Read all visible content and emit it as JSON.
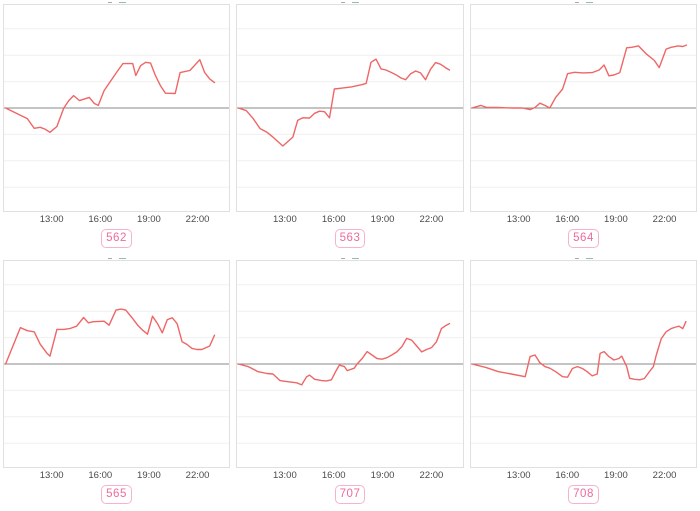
{
  "style": {
    "line_color": "#ee6666",
    "zero_line_color": "#8a8a8a",
    "grid_color": "#f0f0f0",
    "box_border_color": "#e0e0e0",
    "tick_text_color": "#4a4a4a",
    "badge_text_color": "#ee6a9a",
    "badge_border_color": "#f8b3cc",
    "background": "#ffffff"
  },
  "chart_data": [
    {
      "type": "line",
      "badge": "562",
      "x_ticks": [
        "13:00",
        "16:00",
        "19:00",
        "22:00"
      ],
      "x_tick_hours": [
        13,
        16,
        19,
        22
      ],
      "xlim": [
        10,
        24
      ],
      "ylim": [
        -3.9,
        3.9
      ],
      "zero_line": 0,
      "grid": "horizontal",
      "legend": "none",
      "points": [
        [
          10.1,
          0
        ],
        [
          11.45,
          -0.4
        ],
        [
          11.88,
          -0.77
        ],
        [
          12.25,
          -0.73
        ],
        [
          12.55,
          -0.8
        ],
        [
          12.86,
          -0.92
        ],
        [
          13.29,
          -0.7
        ],
        [
          13.72,
          0
        ],
        [
          14.03,
          0.28
        ],
        [
          14.33,
          0.47
        ],
        [
          14.7,
          0.28
        ],
        [
          15.31,
          0.4
        ],
        [
          15.62,
          0.17
        ],
        [
          15.87,
          0.1
        ],
        [
          16.23,
          0.66
        ],
        [
          16.66,
          1.04
        ],
        [
          17.09,
          1.42
        ],
        [
          17.4,
          1.68
        ],
        [
          18.01,
          1.68
        ],
        [
          18.2,
          1.23
        ],
        [
          18.5,
          1.6
        ],
        [
          18.81,
          1.73
        ],
        [
          19.12,
          1.7
        ],
        [
          19.42,
          1.23
        ],
        [
          19.73,
          0.85
        ],
        [
          20.04,
          0.56
        ],
        [
          20.65,
          0.55
        ],
        [
          20.96,
          1.34
        ],
        [
          21.57,
          1.42
        ],
        [
          22.18,
          1.83
        ],
        [
          22.49,
          1.34
        ],
        [
          22.8,
          1.1
        ],
        [
          23.1,
          0.96
        ]
      ]
    },
    {
      "type": "line",
      "badge": "563",
      "x_ticks": [
        "13:00",
        "16:00",
        "19:00",
        "22:00"
      ],
      "x_tick_hours": [
        13,
        16,
        19,
        22
      ],
      "xlim": [
        10,
        24
      ],
      "ylim": [
        -3.9,
        3.9
      ],
      "zero_line": 0,
      "grid": "horizontal",
      "legend": "none",
      "points": [
        [
          10.08,
          0
        ],
        [
          10.57,
          -0.1
        ],
        [
          11.0,
          -0.4
        ],
        [
          11.43,
          -0.78
        ],
        [
          11.86,
          -0.92
        ],
        [
          12.23,
          -1.1
        ],
        [
          12.84,
          -1.44
        ],
        [
          13.46,
          -1.1
        ],
        [
          13.76,
          -0.47
        ],
        [
          14.07,
          -0.37
        ],
        [
          14.5,
          -0.38
        ],
        [
          14.81,
          -0.2
        ],
        [
          15.11,
          -0.12
        ],
        [
          15.42,
          -0.14
        ],
        [
          15.73,
          -0.37
        ],
        [
          16.03,
          0.72
        ],
        [
          16.46,
          0.75
        ],
        [
          17.08,
          0.8
        ],
        [
          17.69,
          0.88
        ],
        [
          18.0,
          0.93
        ],
        [
          18.3,
          1.73
        ],
        [
          18.61,
          1.85
        ],
        [
          18.92,
          1.48
        ],
        [
          19.22,
          1.44
        ],
        [
          19.53,
          1.35
        ],
        [
          19.84,
          1.26
        ],
        [
          20.15,
          1.14
        ],
        [
          20.45,
          1.07
        ],
        [
          20.76,
          1.3
        ],
        [
          21.07,
          1.4
        ],
        [
          21.37,
          1.33
        ],
        [
          21.68,
          1.07
        ],
        [
          21.99,
          1.47
        ],
        [
          22.3,
          1.72
        ],
        [
          22.6,
          1.66
        ],
        [
          22.91,
          1.53
        ],
        [
          23.16,
          1.44
        ]
      ]
    },
    {
      "type": "line",
      "badge": "564",
      "x_ticks": [
        "13:00",
        "16:00",
        "19:00",
        "22:00"
      ],
      "x_tick_hours": [
        13,
        16,
        19,
        22
      ],
      "xlim": [
        10,
        24
      ],
      "ylim": [
        -3.9,
        3.9
      ],
      "zero_line": 0,
      "grid": "horizontal",
      "legend": "none",
      "points": [
        [
          10.06,
          0
        ],
        [
          10.61,
          0.1
        ],
        [
          10.98,
          0.02
        ],
        [
          11.65,
          0.02
        ],
        [
          12.57,
          0
        ],
        [
          13.19,
          0
        ],
        [
          13.68,
          -0.06
        ],
        [
          13.98,
          0.02
        ],
        [
          14.29,
          0.18
        ],
        [
          14.6,
          0.1
        ],
        [
          14.9,
          0
        ],
        [
          15.27,
          0.4
        ],
        [
          15.7,
          0.72
        ],
        [
          16.01,
          1.3
        ],
        [
          16.44,
          1.35
        ],
        [
          16.99,
          1.33
        ],
        [
          17.54,
          1.34
        ],
        [
          17.97,
          1.44
        ],
        [
          18.28,
          1.63
        ],
        [
          18.58,
          1.22
        ],
        [
          18.89,
          1.25
        ],
        [
          19.26,
          1.34
        ],
        [
          19.69,
          2.28
        ],
        [
          20.0,
          2.3
        ],
        [
          20.42,
          2.35
        ],
        [
          20.92,
          2.04
        ],
        [
          21.41,
          1.8
        ],
        [
          21.71,
          1.53
        ],
        [
          22.14,
          2.23
        ],
        [
          22.45,
          2.3
        ],
        [
          22.88,
          2.35
        ],
        [
          23.18,
          2.33
        ],
        [
          23.4,
          2.38
        ]
      ]
    },
    {
      "type": "line",
      "badge": "565",
      "x_ticks": [
        "13:00",
        "16:00",
        "19:00",
        "22:00"
      ],
      "x_tick_hours": [
        13,
        16,
        19,
        22
      ],
      "xlim": [
        10,
        24
      ],
      "ylim": [
        -3.9,
        3.9
      ],
      "zero_line": 0,
      "grid": "horizontal",
      "legend": "none",
      "points": [
        [
          10.1,
          0
        ],
        [
          11.02,
          1.38
        ],
        [
          11.45,
          1.26
        ],
        [
          11.88,
          1.22
        ],
        [
          12.25,
          0.75
        ],
        [
          12.68,
          0.4
        ],
        [
          12.86,
          0.3
        ],
        [
          13.29,
          1.31
        ],
        [
          13.72,
          1.31
        ],
        [
          14.09,
          1.34
        ],
        [
          14.52,
          1.43
        ],
        [
          14.95,
          1.76
        ],
        [
          15.25,
          1.56
        ],
        [
          15.56,
          1.6
        ],
        [
          16.23,
          1.62
        ],
        [
          16.54,
          1.47
        ],
        [
          16.97,
          2.04
        ],
        [
          17.28,
          2.08
        ],
        [
          17.58,
          2.04
        ],
        [
          18.01,
          1.72
        ],
        [
          18.32,
          1.47
        ],
        [
          18.63,
          1.28
        ],
        [
          18.93,
          1.13
        ],
        [
          19.24,
          1.81
        ],
        [
          19.55,
          1.53
        ],
        [
          19.85,
          1.18
        ],
        [
          20.16,
          1.68
        ],
        [
          20.47,
          1.75
        ],
        [
          20.77,
          1.53
        ],
        [
          21.08,
          0.84
        ],
        [
          21.39,
          0.74
        ],
        [
          21.7,
          0.59
        ],
        [
          22.0,
          0.55
        ],
        [
          22.31,
          0.55
        ],
        [
          22.8,
          0.68
        ],
        [
          23.1,
          1.09
        ]
      ]
    },
    {
      "type": "line",
      "badge": "707",
      "x_ticks": [
        "13:00",
        "16:00",
        "19:00",
        "22:00"
      ],
      "x_tick_hours": [
        13,
        16,
        19,
        22
      ],
      "xlim": [
        10,
        24
      ],
      "ylim": [
        -3.9,
        3.9
      ],
      "zero_line": 0,
      "grid": "horizontal",
      "legend": "none",
      "points": [
        [
          10.08,
          0
        ],
        [
          10.7,
          -0.1
        ],
        [
          11.31,
          -0.29
        ],
        [
          11.86,
          -0.36
        ],
        [
          12.23,
          -0.38
        ],
        [
          12.66,
          -0.63
        ],
        [
          13.15,
          -0.67
        ],
        [
          13.7,
          -0.71
        ],
        [
          14.01,
          -0.79
        ],
        [
          14.31,
          -0.48
        ],
        [
          14.5,
          -0.42
        ],
        [
          14.81,
          -0.58
        ],
        [
          15.24,
          -0.63
        ],
        [
          15.54,
          -0.64
        ],
        [
          15.85,
          -0.6
        ],
        [
          16.16,
          -0.23
        ],
        [
          16.34,
          -0.04
        ],
        [
          16.65,
          -0.1
        ],
        [
          16.83,
          -0.25
        ],
        [
          17.26,
          -0.16
        ],
        [
          17.44,
          0
        ],
        [
          17.75,
          0.21
        ],
        [
          18.06,
          0.47
        ],
        [
          18.36,
          0.34
        ],
        [
          18.67,
          0.21
        ],
        [
          18.98,
          0.18
        ],
        [
          19.29,
          0.24
        ],
        [
          19.59,
          0.34
        ],
        [
          19.9,
          0.46
        ],
        [
          20.21,
          0.65
        ],
        [
          20.51,
          0.97
        ],
        [
          20.82,
          0.9
        ],
        [
          21.13,
          0.68
        ],
        [
          21.44,
          0.46
        ],
        [
          21.74,
          0.55
        ],
        [
          22.05,
          0.62
        ],
        [
          22.36,
          0.84
        ],
        [
          22.66,
          1.34
        ],
        [
          22.97,
          1.47
        ],
        [
          23.16,
          1.53
        ]
      ]
    },
    {
      "type": "line",
      "badge": "708",
      "x_ticks": [
        "13:00",
        "16:00",
        "19:00",
        "22:00"
      ],
      "x_tick_hours": [
        13,
        16,
        19,
        22
      ],
      "xlim": [
        10,
        24
      ],
      "ylim": [
        -3.9,
        3.9
      ],
      "zero_line": 0,
      "grid": "horizontal",
      "legend": "none",
      "points": [
        [
          10.06,
          0
        ],
        [
          10.92,
          -0.13
        ],
        [
          11.71,
          -0.29
        ],
        [
          12.51,
          -0.38
        ],
        [
          13.37,
          -0.48
        ],
        [
          13.68,
          0.28
        ],
        [
          13.98,
          0.34
        ],
        [
          14.29,
          0.05
        ],
        [
          14.6,
          -0.1
        ],
        [
          14.9,
          -0.16
        ],
        [
          15.27,
          -0.29
        ],
        [
          15.7,
          -0.48
        ],
        [
          16.01,
          -0.5
        ],
        [
          16.31,
          -0.17
        ],
        [
          16.62,
          -0.1
        ],
        [
          16.93,
          -0.17
        ],
        [
          17.23,
          -0.29
        ],
        [
          17.54,
          -0.45
        ],
        [
          17.85,
          -0.38
        ],
        [
          18.03,
          0.4
        ],
        [
          18.28,
          0.47
        ],
        [
          18.58,
          0.28
        ],
        [
          18.89,
          0.15
        ],
        [
          19.2,
          0.21
        ],
        [
          19.38,
          0.3
        ],
        [
          19.69,
          -0.1
        ],
        [
          19.87,
          -0.54
        ],
        [
          20.18,
          -0.58
        ],
        [
          20.49,
          -0.6
        ],
        [
          20.79,
          -0.55
        ],
        [
          21.1,
          -0.29
        ],
        [
          21.35,
          -0.1
        ],
        [
          21.53,
          0.34
        ],
        [
          21.84,
          0.96
        ],
        [
          22.14,
          1.22
        ],
        [
          22.45,
          1.34
        ],
        [
          22.75,
          1.4
        ],
        [
          22.94,
          1.43
        ],
        [
          23.18,
          1.34
        ],
        [
          23.37,
          1.6
        ]
      ]
    }
  ]
}
